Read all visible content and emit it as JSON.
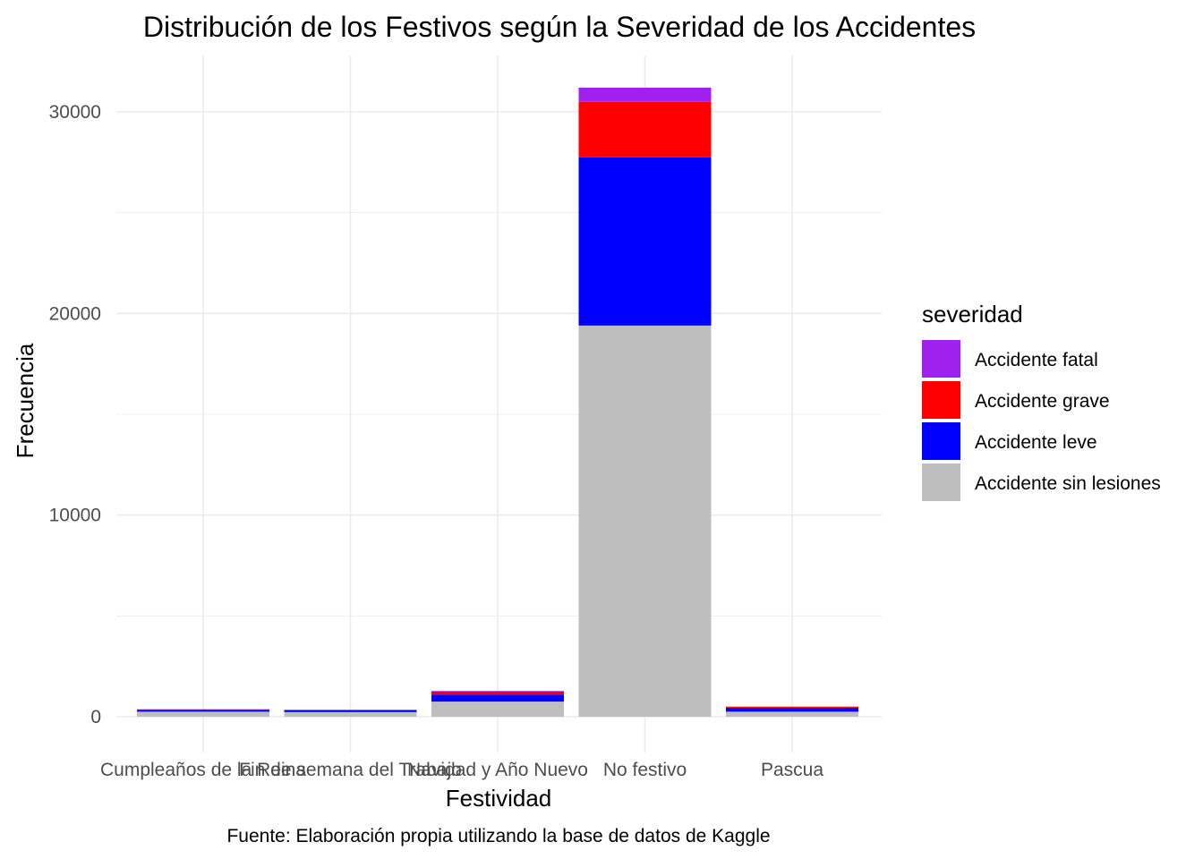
{
  "chart_data": {
    "type": "bar",
    "stacked": true,
    "title": "Distribución de los Festivos según la Severidad de los Accidentes",
    "xlabel": "Festividad",
    "ylabel": "Frecuencia",
    "caption": "Fuente: Elaboración propia utilizando la base de datos de Kaggle",
    "categories": [
      "Cumpleaños de la Reina",
      "Fin de semana del Trabajo",
      "Navidad y Año Nuevo",
      "No festivo",
      "Pascua"
    ],
    "ylim": [
      0,
      31000
    ],
    "yticks": [
      0,
      10000,
      20000,
      30000
    ],
    "grid": true,
    "legend": {
      "title": "severidad",
      "position": "right"
    },
    "series": [
      {
        "name": "Accidente sin lesiones",
        "color": "#BEBEBE",
        "values": [
          250,
          230,
          750,
          19400,
          250
        ]
      },
      {
        "name": "Accidente leve",
        "color": "#0000FF",
        "values": [
          90,
          80,
          350,
          8350,
          200
        ]
      },
      {
        "name": "Accidente grave",
        "color": "#FF0000",
        "values": [
          25,
          25,
          150,
          2750,
          40
        ]
      },
      {
        "name": "Accidente fatal",
        "color": "#A020F0",
        "values": [
          10,
          10,
          30,
          700,
          15
        ]
      }
    ]
  }
}
